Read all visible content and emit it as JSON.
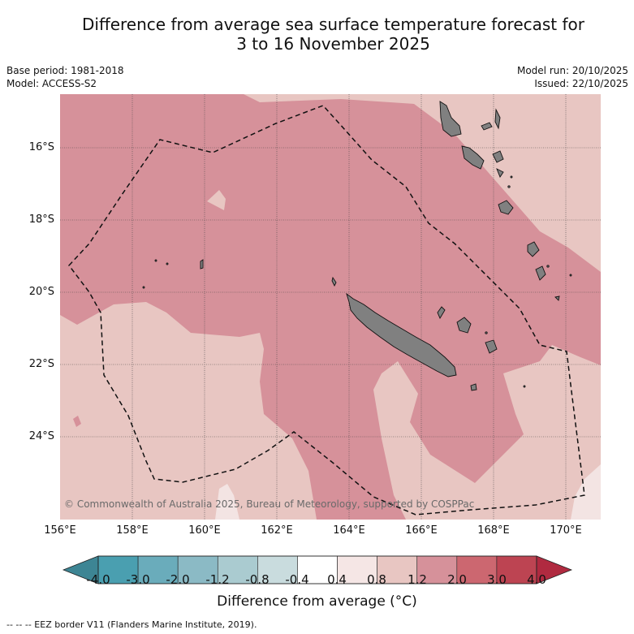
{
  "title_line1": "Difference from average sea surface temperature forecast for",
  "title_line2": "3 to 16 November 2025",
  "meta": {
    "base_period": "Base period: 1981-2018",
    "model": "Model: ACCESS-S2",
    "model_run": "Model run: 20/10/2025",
    "issued": "Issued: 22/10/2025"
  },
  "latitudes": [
    "16°S",
    "18°S",
    "20°S",
    "22°S",
    "24°S"
  ],
  "longitudes": [
    "156°E",
    "158°E",
    "160°E",
    "162°E",
    "164°E",
    "166°E",
    "168°E",
    "170°E"
  ],
  "colorbar": {
    "ticks": [
      "-4.0",
      "-3.0",
      "-2.0",
      "-1.2",
      "-0.8",
      "-0.4",
      "0.4",
      "0.8",
      "1.2",
      "2.0",
      "3.0",
      "4.0"
    ],
    "colors": [
      "#4a9fb0",
      "#6aacbb",
      "#8bbac5",
      "#aacbd0",
      "#c9dcde",
      "#ffffff",
      "#f5e6e5",
      "#e8c6c2",
      "#d6919a",
      "#cc6770",
      "#bd4452"
    ],
    "under_color": "#3d8594",
    "over_color": "#b02a40",
    "label": "Difference from average (°C)"
  },
  "map": {
    "colors": {
      "cat_0_4_0_8": "#f3e4e3",
      "cat_0_8_1_2": "#e8c6c2",
      "cat_1_2_2_0": "#d6919a",
      "land": "#808080",
      "eez": "#111111"
    }
  },
  "copyright": "© Commonwealth of Australia 2025, Bureau of Meteorology, supported by COSPPac",
  "eez_legend": "--  --  -- EEZ border V11 (Flanders Marine Institute, 2019)."
}
